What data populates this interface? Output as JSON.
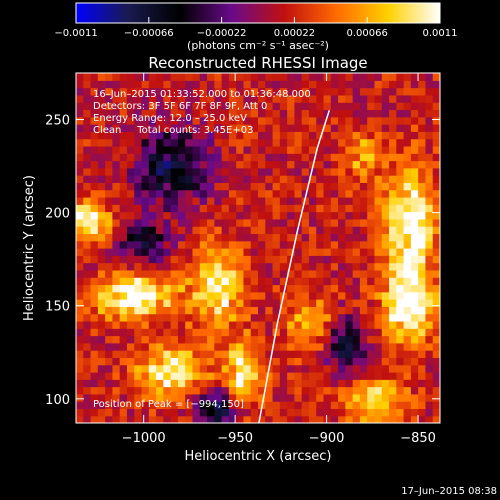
{
  "chart_data": {
    "type": "heatmap",
    "title": "Reconstructed RHESSI Image",
    "xlabel": "Heliocentric X (arcsec)",
    "ylabel": "Heliocentric Y (arcsec)",
    "xlim": [
      -1037,
      -838
    ],
    "ylim": [
      87,
      275
    ],
    "x_ticks": [
      -1000,
      -950,
      -900,
      -850
    ],
    "x_tick_labels": [
      "−1000",
      "−950",
      "−900",
      "−850"
    ],
    "y_ticks": [
      100,
      150,
      200,
      250
    ],
    "y_tick_labels": [
      "100",
      "150",
      "200",
      "250"
    ],
    "colorbar": {
      "range": [
        -0.0011,
        0.0011
      ],
      "ticks": [
        -0.0011,
        -0.00066,
        -0.00022,
        0.00022,
        0.00066,
        0.0011
      ],
      "tick_labels": [
        "−0.0011",
        "−0.00066",
        "−0.00022",
        "0.00022",
        "0.00066",
        "0.0011"
      ],
      "unit_label": "(photons cm⁻² s⁻¹ asec⁻²)",
      "colors": [
        "#0000ff",
        "#1a1a50",
        "#000000",
        "#6a0a8a",
        "#c01010",
        "#ff6a00",
        "#ffd000",
        "#ffffff"
      ]
    },
    "annotations": [
      "16–Jun–2015 01:33:52.000 to 01:36:48.000",
      "Detectors: 3F 5F 6F 7F 8F 9F, Att 0",
      "Energy Range: 12.0 – 25.0 keV",
      "Clean     Total counts: 3.45E+03"
    ],
    "peak_label": "Position of Peak = [−994,150]",
    "limb_line": [
      {
        "x": -937.0,
        "y": 87
      },
      {
        "x": -927.0,
        "y": 140
      },
      {
        "x": -916.0,
        "y": 190
      },
      {
        "x": -905.0,
        "y": 235
      },
      {
        "x": -898.5,
        "y": 255
      }
    ],
    "hot_regions": [
      {
        "x": -1005,
        "y": 155,
        "sx": 14,
        "sy": 8,
        "v": 0.0011
      },
      {
        "x": -985,
        "y": 115,
        "sx": 12,
        "sy": 9,
        "v": 0.00095
      },
      {
        "x": -1030,
        "y": 196,
        "sx": 8,
        "sy": 8,
        "v": 0.0009
      },
      {
        "x": -960,
        "y": 160,
        "sx": 10,
        "sy": 14,
        "v": 0.00085
      },
      {
        "x": -945,
        "y": 115,
        "sx": 7,
        "sy": 12,
        "v": 0.0008
      },
      {
        "x": -855,
        "y": 190,
        "sx": 10,
        "sy": 22,
        "v": 0.001
      },
      {
        "x": -855,
        "y": 148,
        "sx": 10,
        "sy": 12,
        "v": 0.00095
      },
      {
        "x": -875,
        "y": 100,
        "sx": 12,
        "sy": 8,
        "v": 0.0007
      },
      {
        "x": -880,
        "y": 230,
        "sx": 6,
        "sy": 10,
        "v": 0.0005
      },
      {
        "x": -910,
        "y": 140,
        "sx": 9,
        "sy": 10,
        "v": 0.0006
      }
    ],
    "cold_regions": [
      {
        "x": -985,
        "y": 225,
        "sx": 14,
        "sy": 14,
        "v": -0.0008
      },
      {
        "x": -960,
        "y": 95,
        "sx": 8,
        "sy": 6,
        "v": -0.0009
      },
      {
        "x": -890,
        "y": 130,
        "sx": 8,
        "sy": 10,
        "v": -0.0008
      },
      {
        "x": -1000,
        "y": 185,
        "sx": 10,
        "sy": 8,
        "v": -0.0006
      }
    ]
  },
  "timestamp": "17–Jun–2015 08:38"
}
